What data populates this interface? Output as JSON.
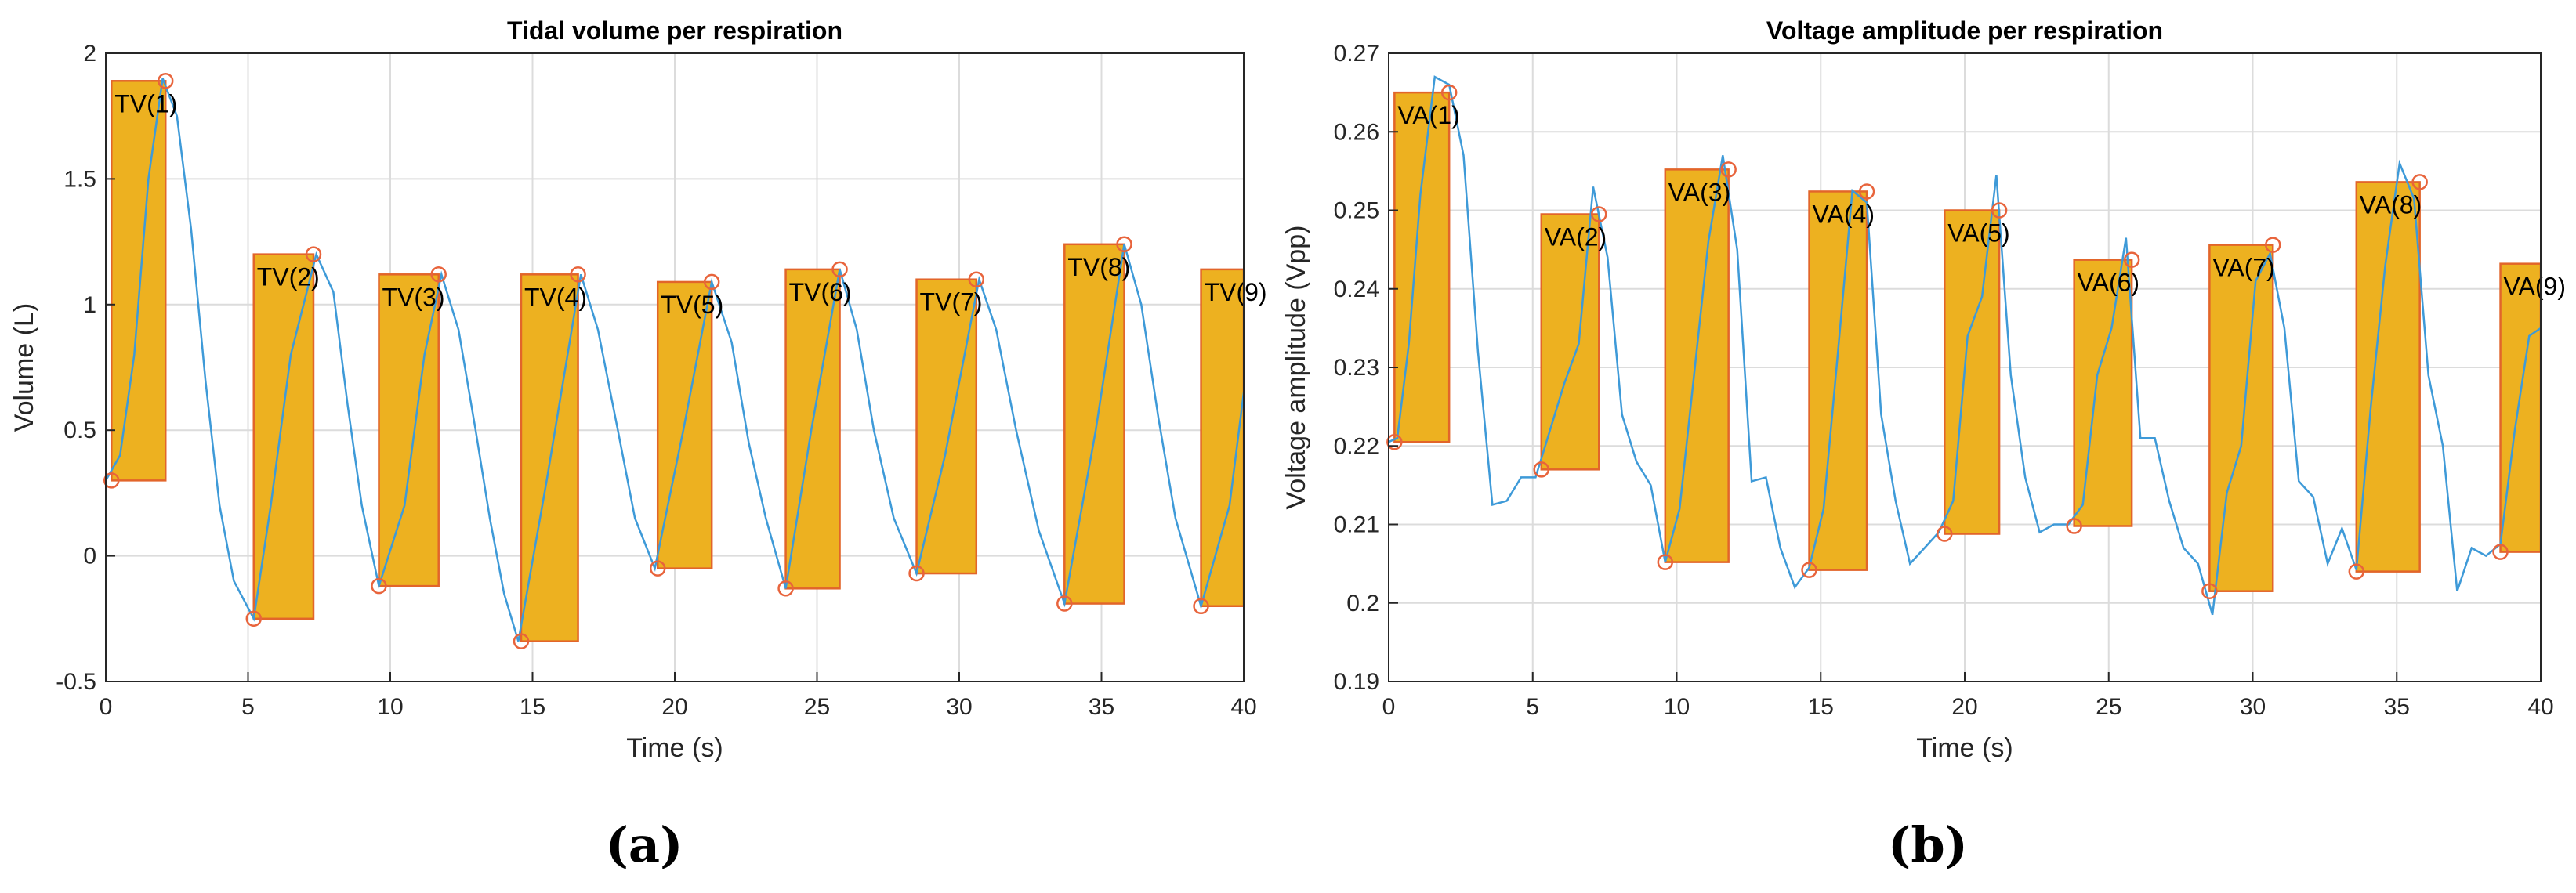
{
  "colors": {
    "bar_fill": "#EDB120",
    "bar_edge": "#E2652A",
    "line": "#3E9AD8",
    "marker": "#E8643C",
    "marker_dark": "#6f6f6f",
    "grid": "#DCDCDC",
    "axis": "#262626"
  },
  "chart_data": [
    {
      "type": "line",
      "title": "Tidal volume per respiration",
      "xlabel": "Time (s)",
      "ylabel": "Volume (L)",
      "xlim": [
        0,
        40
      ],
      "ylim": [
        -0.5,
        2
      ],
      "xticks": [
        0,
        5,
        10,
        15,
        20,
        25,
        30,
        35,
        40
      ],
      "xtick_labels": [
        "0",
        "5",
        "10",
        "15",
        "20",
        "25",
        "30",
        "35",
        "40"
      ],
      "yticks": [
        -0.5,
        0,
        0.5,
        1,
        1.5,
        2
      ],
      "ytick_labels": [
        "-0.5",
        "0",
        "0.5",
        "1",
        "1.5",
        "2"
      ],
      "grid": true,
      "panel_label": "(a)",
      "series": [
        {
          "name": "Volume",
          "x": [
            0,
            0.5,
            1,
            1.5,
            2,
            2.5,
            3,
            3.5,
            4,
            4.5,
            5.2,
            5.8,
            6.5,
            7.4,
            8,
            8.5,
            9,
            9.6,
            10.5,
            11.2,
            11.8,
            12.4,
            13,
            13.5,
            14,
            14.5,
            15.5,
            16.7,
            17.3,
            18,
            18.6,
            19.3,
            20.3,
            21.3,
            22,
            22.6,
            23.2,
            23.9,
            24.8,
            25.8,
            26.4,
            27,
            27.7,
            28.5,
            29.5,
            30.7,
            31.3,
            32,
            32.8,
            33.7,
            34.8,
            35.8,
            36.4,
            37,
            37.6,
            38.5,
            39.5,
            40
          ],
          "y": [
            0.3,
            0.4,
            0.8,
            1.5,
            1.9,
            1.75,
            1.3,
            0.7,
            0.2,
            -0.1,
            -0.25,
            0.2,
            0.8,
            1.2,
            1.05,
            0.6,
            0.2,
            -0.12,
            0.2,
            0.8,
            1.12,
            0.9,
            0.5,
            0.15,
            -0.15,
            -0.34,
            0.3,
            1.12,
            0.9,
            0.5,
            0.15,
            -0.05,
            0.5,
            1.09,
            0.85,
            0.45,
            0.15,
            -0.13,
            0.5,
            1.14,
            0.9,
            0.5,
            0.15,
            -0.07,
            0.4,
            1.1,
            0.9,
            0.5,
            0.1,
            -0.19,
            0.5,
            1.24,
            1.0,
            0.55,
            0.15,
            -0.2,
            0.2,
            0.65
          ]
        }
      ],
      "bars": [
        {
          "label": "TV(1)",
          "x_start": 0.2,
          "x_end": 2.1,
          "y_low": 0.3,
          "y_high": 1.89
        },
        {
          "label": "TV(2)",
          "x_start": 5.2,
          "x_end": 7.3,
          "y_low": -0.25,
          "y_high": 1.2
        },
        {
          "label": "TV(3)",
          "x_start": 9.6,
          "x_end": 11.7,
          "y_low": -0.12,
          "y_high": 1.12
        },
        {
          "label": "TV(4)",
          "x_start": 14.6,
          "x_end": 16.6,
          "y_low": -0.34,
          "y_high": 1.12
        },
        {
          "label": "TV(5)",
          "x_start": 19.4,
          "x_end": 21.3,
          "y_low": -0.05,
          "y_high": 1.09
        },
        {
          "label": "TV(6)",
          "x_start": 23.9,
          "x_end": 25.8,
          "y_low": -0.13,
          "y_high": 1.14
        },
        {
          "label": "TV(7)",
          "x_start": 28.5,
          "x_end": 30.6,
          "y_low": -0.07,
          "y_high": 1.1
        },
        {
          "label": "TV(8)",
          "x_start": 33.7,
          "x_end": 35.8,
          "y_low": -0.19,
          "y_high": 1.24
        },
        {
          "label": "TV(9)",
          "x_start": 38.5,
          "x_end": 40,
          "y_low": -0.2,
          "y_high": 1.14
        }
      ],
      "markers": [
        {
          "x": 0.2,
          "y": 0.3
        },
        {
          "x": 2.1,
          "y": 1.89
        },
        {
          "x": 5.2,
          "y": -0.25
        },
        {
          "x": 7.3,
          "y": 1.2
        },
        {
          "x": 9.6,
          "y": -0.12
        },
        {
          "x": 11.7,
          "y": 1.12
        },
        {
          "x": 14.6,
          "y": -0.34
        },
        {
          "x": 16.6,
          "y": 1.12
        },
        {
          "x": 19.4,
          "y": -0.05
        },
        {
          "x": 21.3,
          "y": 1.09
        },
        {
          "x": 23.9,
          "y": -0.13
        },
        {
          "x": 25.8,
          "y": 1.14
        },
        {
          "x": 28.5,
          "y": -0.07
        },
        {
          "x": 30.6,
          "y": 1.1
        },
        {
          "x": 33.7,
          "y": -0.19
        },
        {
          "x": 35.8,
          "y": 1.24
        },
        {
          "x": 38.5,
          "y": -0.2
        }
      ]
    },
    {
      "type": "line",
      "title": "Voltage amplitude per respiration",
      "xlabel": "Time (s)",
      "ylabel": "Voltage amplitude (Vpp)",
      "xlim": [
        0,
        40
      ],
      "ylim": [
        0.19,
        0.27
      ],
      "xticks": [
        0,
        5,
        10,
        15,
        20,
        25,
        30,
        35,
        40
      ],
      "xtick_labels": [
        "0",
        "5",
        "10",
        "15",
        "20",
        "25",
        "30",
        "35",
        "40"
      ],
      "yticks": [
        0.19,
        0.2,
        0.21,
        0.22,
        0.23,
        0.24,
        0.25,
        0.26,
        0.27
      ],
      "ytick_labels": [
        "0.19",
        "0.2",
        "0.21",
        "0.22",
        "0.23",
        "0.24",
        "0.25",
        "0.26",
        "0.27"
      ],
      "grid": true,
      "panel_label": "(b)",
      "series": [
        {
          "name": "Voltage amplitude",
          "x": [
            0,
            0.3,
            0.7,
            1.1,
            1.6,
            2.1,
            2.6,
            3.1,
            3.6,
            4.1,
            4.6,
            5.1,
            5.6,
            6.1,
            6.6,
            7.1,
            7.6,
            8.1,
            8.6,
            9.1,
            9.6,
            10.1,
            10.6,
            11.1,
            11.6,
            12.1,
            12.6,
            13.1,
            13.6,
            14.1,
            14.6,
            15.1,
            15.6,
            16.1,
            16.6,
            17.1,
            17.6,
            18.1,
            18.6,
            19.1,
            19.6,
            20.1,
            20.6,
            21.1,
            21.6,
            22.1,
            22.6,
            23.1,
            23.6,
            24.1,
            24.6,
            25.1,
            25.6,
            26.1,
            26.6,
            27.1,
            27.6,
            28.1,
            28.6,
            29.1,
            29.6,
            30.1,
            30.6,
            31.1,
            31.6,
            32.1,
            32.6,
            33.1,
            33.6,
            34.1,
            34.6,
            35.1,
            35.6,
            36.1,
            36.6,
            37.1,
            37.6,
            38.1,
            38.6,
            39.1,
            39.6,
            40
          ],
          "y": [
            0.2205,
            0.221,
            0.233,
            0.252,
            0.267,
            0.266,
            0.257,
            0.232,
            0.2125,
            0.213,
            0.216,
            0.216,
            0.222,
            0.228,
            0.233,
            0.253,
            0.244,
            0.224,
            0.218,
            0.215,
            0.2052,
            0.212,
            0.229,
            0.246,
            0.257,
            0.245,
            0.2155,
            0.216,
            0.207,
            0.202,
            0.2045,
            0.212,
            0.232,
            0.2525,
            0.251,
            0.224,
            0.213,
            0.205,
            0.207,
            0.209,
            0.213,
            0.234,
            0.239,
            0.2545,
            0.229,
            0.216,
            0.209,
            0.21,
            0.21,
            0.2125,
            0.229,
            0.235,
            0.2465,
            0.221,
            0.221,
            0.213,
            0.207,
            0.205,
            0.1985,
            0.214,
            0.22,
            0.241,
            0.2445,
            0.235,
            0.2155,
            0.2135,
            0.205,
            0.2095,
            0.2042,
            0.225,
            0.243,
            0.256,
            0.2515,
            0.229,
            0.22,
            0.2015,
            0.207,
            0.206,
            0.2075,
            0.222,
            0.234,
            0.235
          ]
        }
      ],
      "bars": [
        {
          "label": "VA(1)",
          "x_start": 0.2,
          "x_end": 2.1,
          "y_low": 0.2205,
          "y_high": 0.265
        },
        {
          "label": "VA(2)",
          "x_start": 5.3,
          "x_end": 7.3,
          "y_low": 0.217,
          "y_high": 0.2495
        },
        {
          "label": "VA(3)",
          "x_start": 9.6,
          "x_end": 11.8,
          "y_low": 0.2052,
          "y_high": 0.2552
        },
        {
          "label": "VA(4)",
          "x_start": 14.6,
          "x_end": 16.6,
          "y_low": 0.2042,
          "y_high": 0.2524
        },
        {
          "label": "VA(5)",
          "x_start": 19.3,
          "x_end": 21.2,
          "y_low": 0.2088,
          "y_high": 0.25
        },
        {
          "label": "VA(6)",
          "x_start": 23.8,
          "x_end": 25.8,
          "y_low": 0.2098,
          "y_high": 0.2437
        },
        {
          "label": "VA(7)",
          "x_start": 28.5,
          "x_end": 30.7,
          "y_low": 0.2015,
          "y_high": 0.2456
        },
        {
          "label": "VA(8)",
          "x_start": 33.6,
          "x_end": 35.8,
          "y_low": 0.204,
          "y_high": 0.2536
        },
        {
          "label": "VA(9)",
          "x_start": 38.6,
          "x_end": 40,
          "y_low": 0.2065,
          "y_high": 0.2432
        }
      ],
      "markers": [
        {
          "x": 0.2,
          "y": 0.2205
        },
        {
          "x": 2.1,
          "y": 0.265
        },
        {
          "x": 5.3,
          "y": 0.217
        },
        {
          "x": 7.3,
          "y": 0.2495
        },
        {
          "x": 9.6,
          "y": 0.2052
        },
        {
          "x": 11.8,
          "y": 0.2552
        },
        {
          "x": 14.6,
          "y": 0.2042
        },
        {
          "x": 16.6,
          "y": 0.2524
        },
        {
          "x": 19.3,
          "y": 0.2088
        },
        {
          "x": 21.2,
          "y": 0.25
        },
        {
          "x": 23.8,
          "y": 0.2098
        },
        {
          "x": 25.8,
          "y": 0.2437
        },
        {
          "x": 28.5,
          "y": 0.2015
        },
        {
          "x": 30.7,
          "y": 0.2456
        },
        {
          "x": 33.6,
          "y": 0.204
        },
        {
          "x": 35.8,
          "y": 0.2536
        },
        {
          "x": 38.6,
          "y": 0.2065
        }
      ]
    }
  ]
}
